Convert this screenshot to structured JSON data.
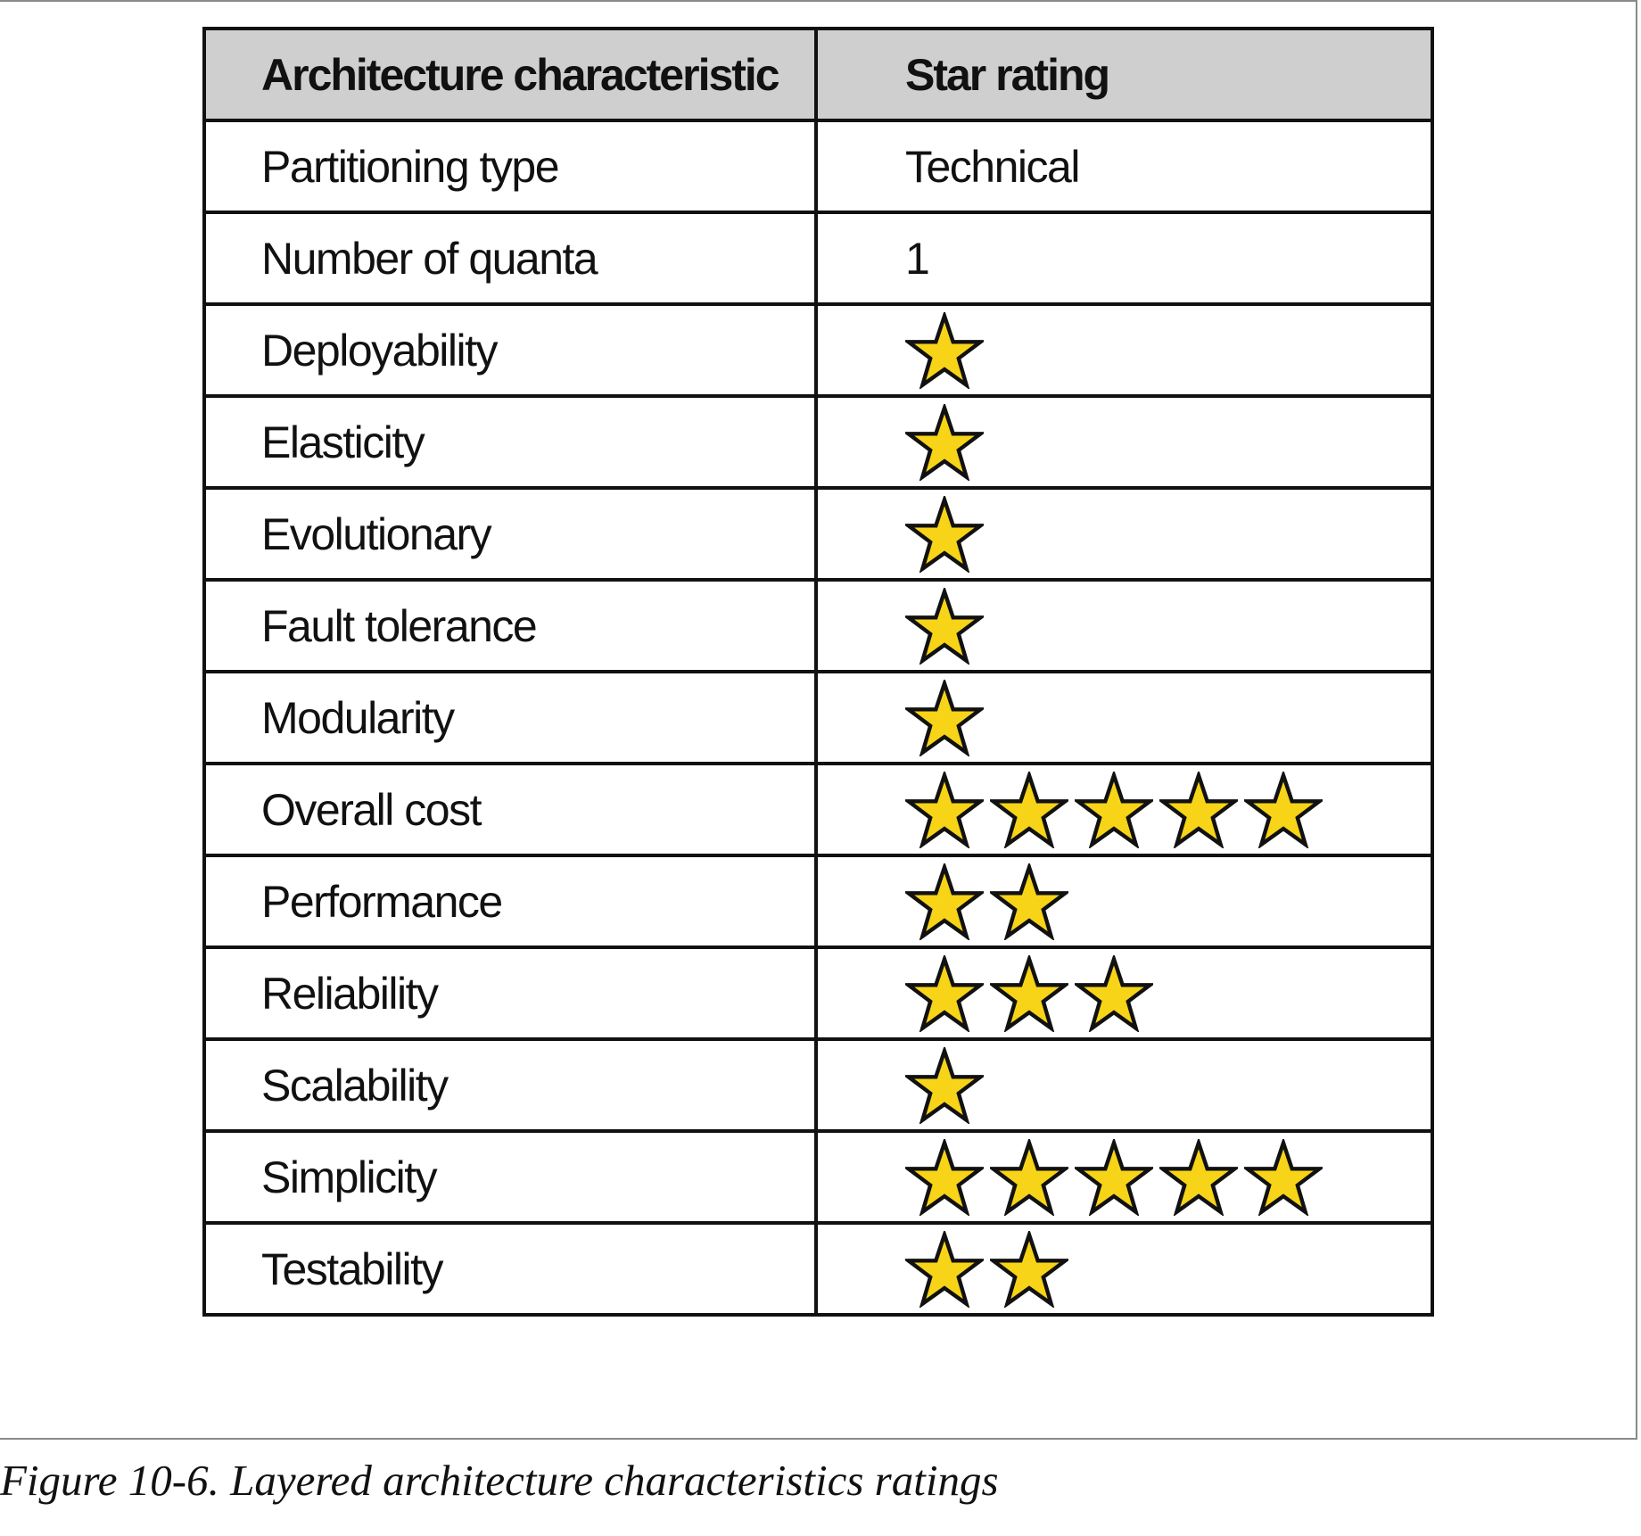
{
  "table": {
    "headers": {
      "characteristic": "Architecture characteristic",
      "rating": "Star rating"
    },
    "rows": [
      {
        "label": "Partitioning type",
        "text": "Technical"
      },
      {
        "label": "Number of quanta",
        "text": "1"
      },
      {
        "label": "Deployability",
        "stars": 1
      },
      {
        "label": "Elasticity",
        "stars": 1
      },
      {
        "label": "Evolutionary",
        "stars": 1
      },
      {
        "label": "Fault tolerance",
        "stars": 1
      },
      {
        "label": "Modularity",
        "stars": 1
      },
      {
        "label": "Overall cost",
        "stars": 5
      },
      {
        "label": "Performance",
        "stars": 2
      },
      {
        "label": "Reliability",
        "stars": 3
      },
      {
        "label": "Scalability",
        "stars": 1
      },
      {
        "label": "Simplicity",
        "stars": 5
      },
      {
        "label": "Testability",
        "stars": 2
      }
    ]
  },
  "star_icon": "star-icon",
  "colors": {
    "star_fill": "#f7d417",
    "star_stroke": "#111111",
    "header_background": "#cfcfcf"
  },
  "caption": "Figure 10-6. Layered architecture characteristics ratings"
}
